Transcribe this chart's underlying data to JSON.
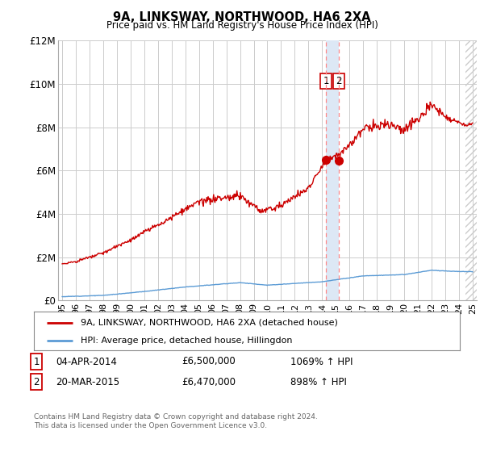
{
  "title": "9A, LINKSWAY, NORTHWOOD, HA6 2XA",
  "subtitle": "Price paid vs. HM Land Registry's House Price Index (HPI)",
  "legend_line1": "9A, LINKSWAY, NORTHWOOD, HA6 2XA (detached house)",
  "legend_line2": "HPI: Average price, detached house, Hillingdon",
  "annotation1_label": "1",
  "annotation1_date": "04-APR-2014",
  "annotation1_price": "£6,500,000",
  "annotation1_hpi": "1069% ↑ HPI",
  "annotation2_label": "2",
  "annotation2_date": "20-MAR-2015",
  "annotation2_price": "£6,470,000",
  "annotation2_hpi": "898% ↑ HPI",
  "footer": "Contains HM Land Registry data © Crown copyright and database right 2024.\nThis data is licensed under the Open Government Licence v3.0.",
  "hpi_line_color": "#5b9bd5",
  "price_line_color": "#cc0000",
  "dashed_vline_color": "#ff8888",
  "point_color": "#cc0000",
  "annotation_box_color": "#cc0000",
  "background_color": "#ffffff",
  "grid_color": "#cccccc",
  "shaded_band_color": "#dde8f5",
  "hatch_color": "#cccccc",
  "ylim": [
    0,
    12000000
  ],
  "yticks": [
    0,
    2000000,
    4000000,
    6000000,
    8000000,
    10000000,
    12000000
  ],
  "ytick_labels": [
    "£0",
    "£2M",
    "£4M",
    "£6M",
    "£8M",
    "£10M",
    "£12M"
  ],
  "xstart_year": 1995,
  "xend_year": 2025,
  "xticks": [
    1995,
    1996,
    1997,
    1998,
    1999,
    2000,
    2001,
    2002,
    2003,
    2004,
    2005,
    2006,
    2007,
    2008,
    2009,
    2010,
    2011,
    2012,
    2013,
    2014,
    2015,
    2016,
    2017,
    2018,
    2019,
    2020,
    2021,
    2022,
    2023,
    2024,
    2025
  ],
  "vline1_x": 2014.27,
  "vline2_x": 2015.22,
  "point1_x": 2014.27,
  "point1_y": 6500000,
  "point2_x": 2015.22,
  "point2_y": 6470000,
  "hatch_start": 2024.5,
  "hatch_end": 2025.5
}
